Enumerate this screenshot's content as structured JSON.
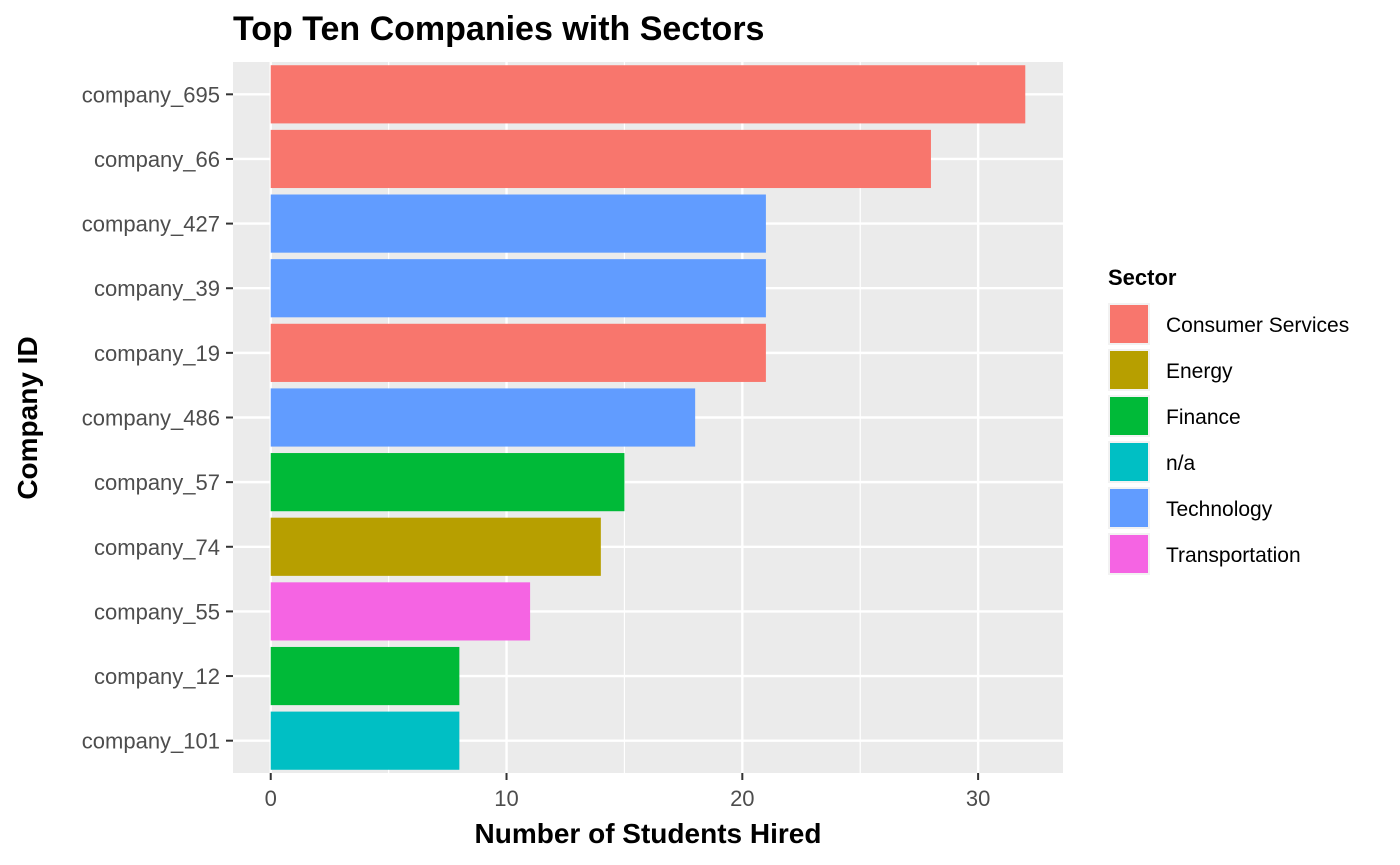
{
  "chart_data": {
    "type": "bar",
    "orientation": "horizontal",
    "title": "Top Ten Companies with Sectors",
    "xlabel": "Number of Students Hired",
    "ylabel": "Company ID",
    "xlim": [
      -1.6,
      33.6
    ],
    "xticks": [
      0,
      10,
      20,
      30
    ],
    "grid": true,
    "legend": {
      "title": "Sector",
      "position": "right",
      "entries": [
        {
          "name": "Consumer Services",
          "color": "#F8766D"
        },
        {
          "name": "Energy",
          "color": "#B79F00"
        },
        {
          "name": "Finance",
          "color": "#00BA38"
        },
        {
          "name": "n/a",
          "color": "#00BFC4"
        },
        {
          "name": "Technology",
          "color": "#619CFF"
        },
        {
          "name": "Transportation",
          "color": "#F564E3"
        }
      ]
    },
    "categories": [
      "company_695",
      "company_66",
      "company_427",
      "company_39",
      "company_19",
      "company_486",
      "company_57",
      "company_74",
      "company_55",
      "company_12",
      "company_101"
    ],
    "values": [
      32,
      28,
      21,
      21,
      21,
      18,
      15,
      14,
      11,
      8,
      8
    ],
    "sectors": [
      "Consumer Services",
      "Consumer Services",
      "Technology",
      "Technology",
      "Consumer Services",
      "Technology",
      "Finance",
      "Energy",
      "Transportation",
      "Finance",
      "n/a"
    ]
  }
}
